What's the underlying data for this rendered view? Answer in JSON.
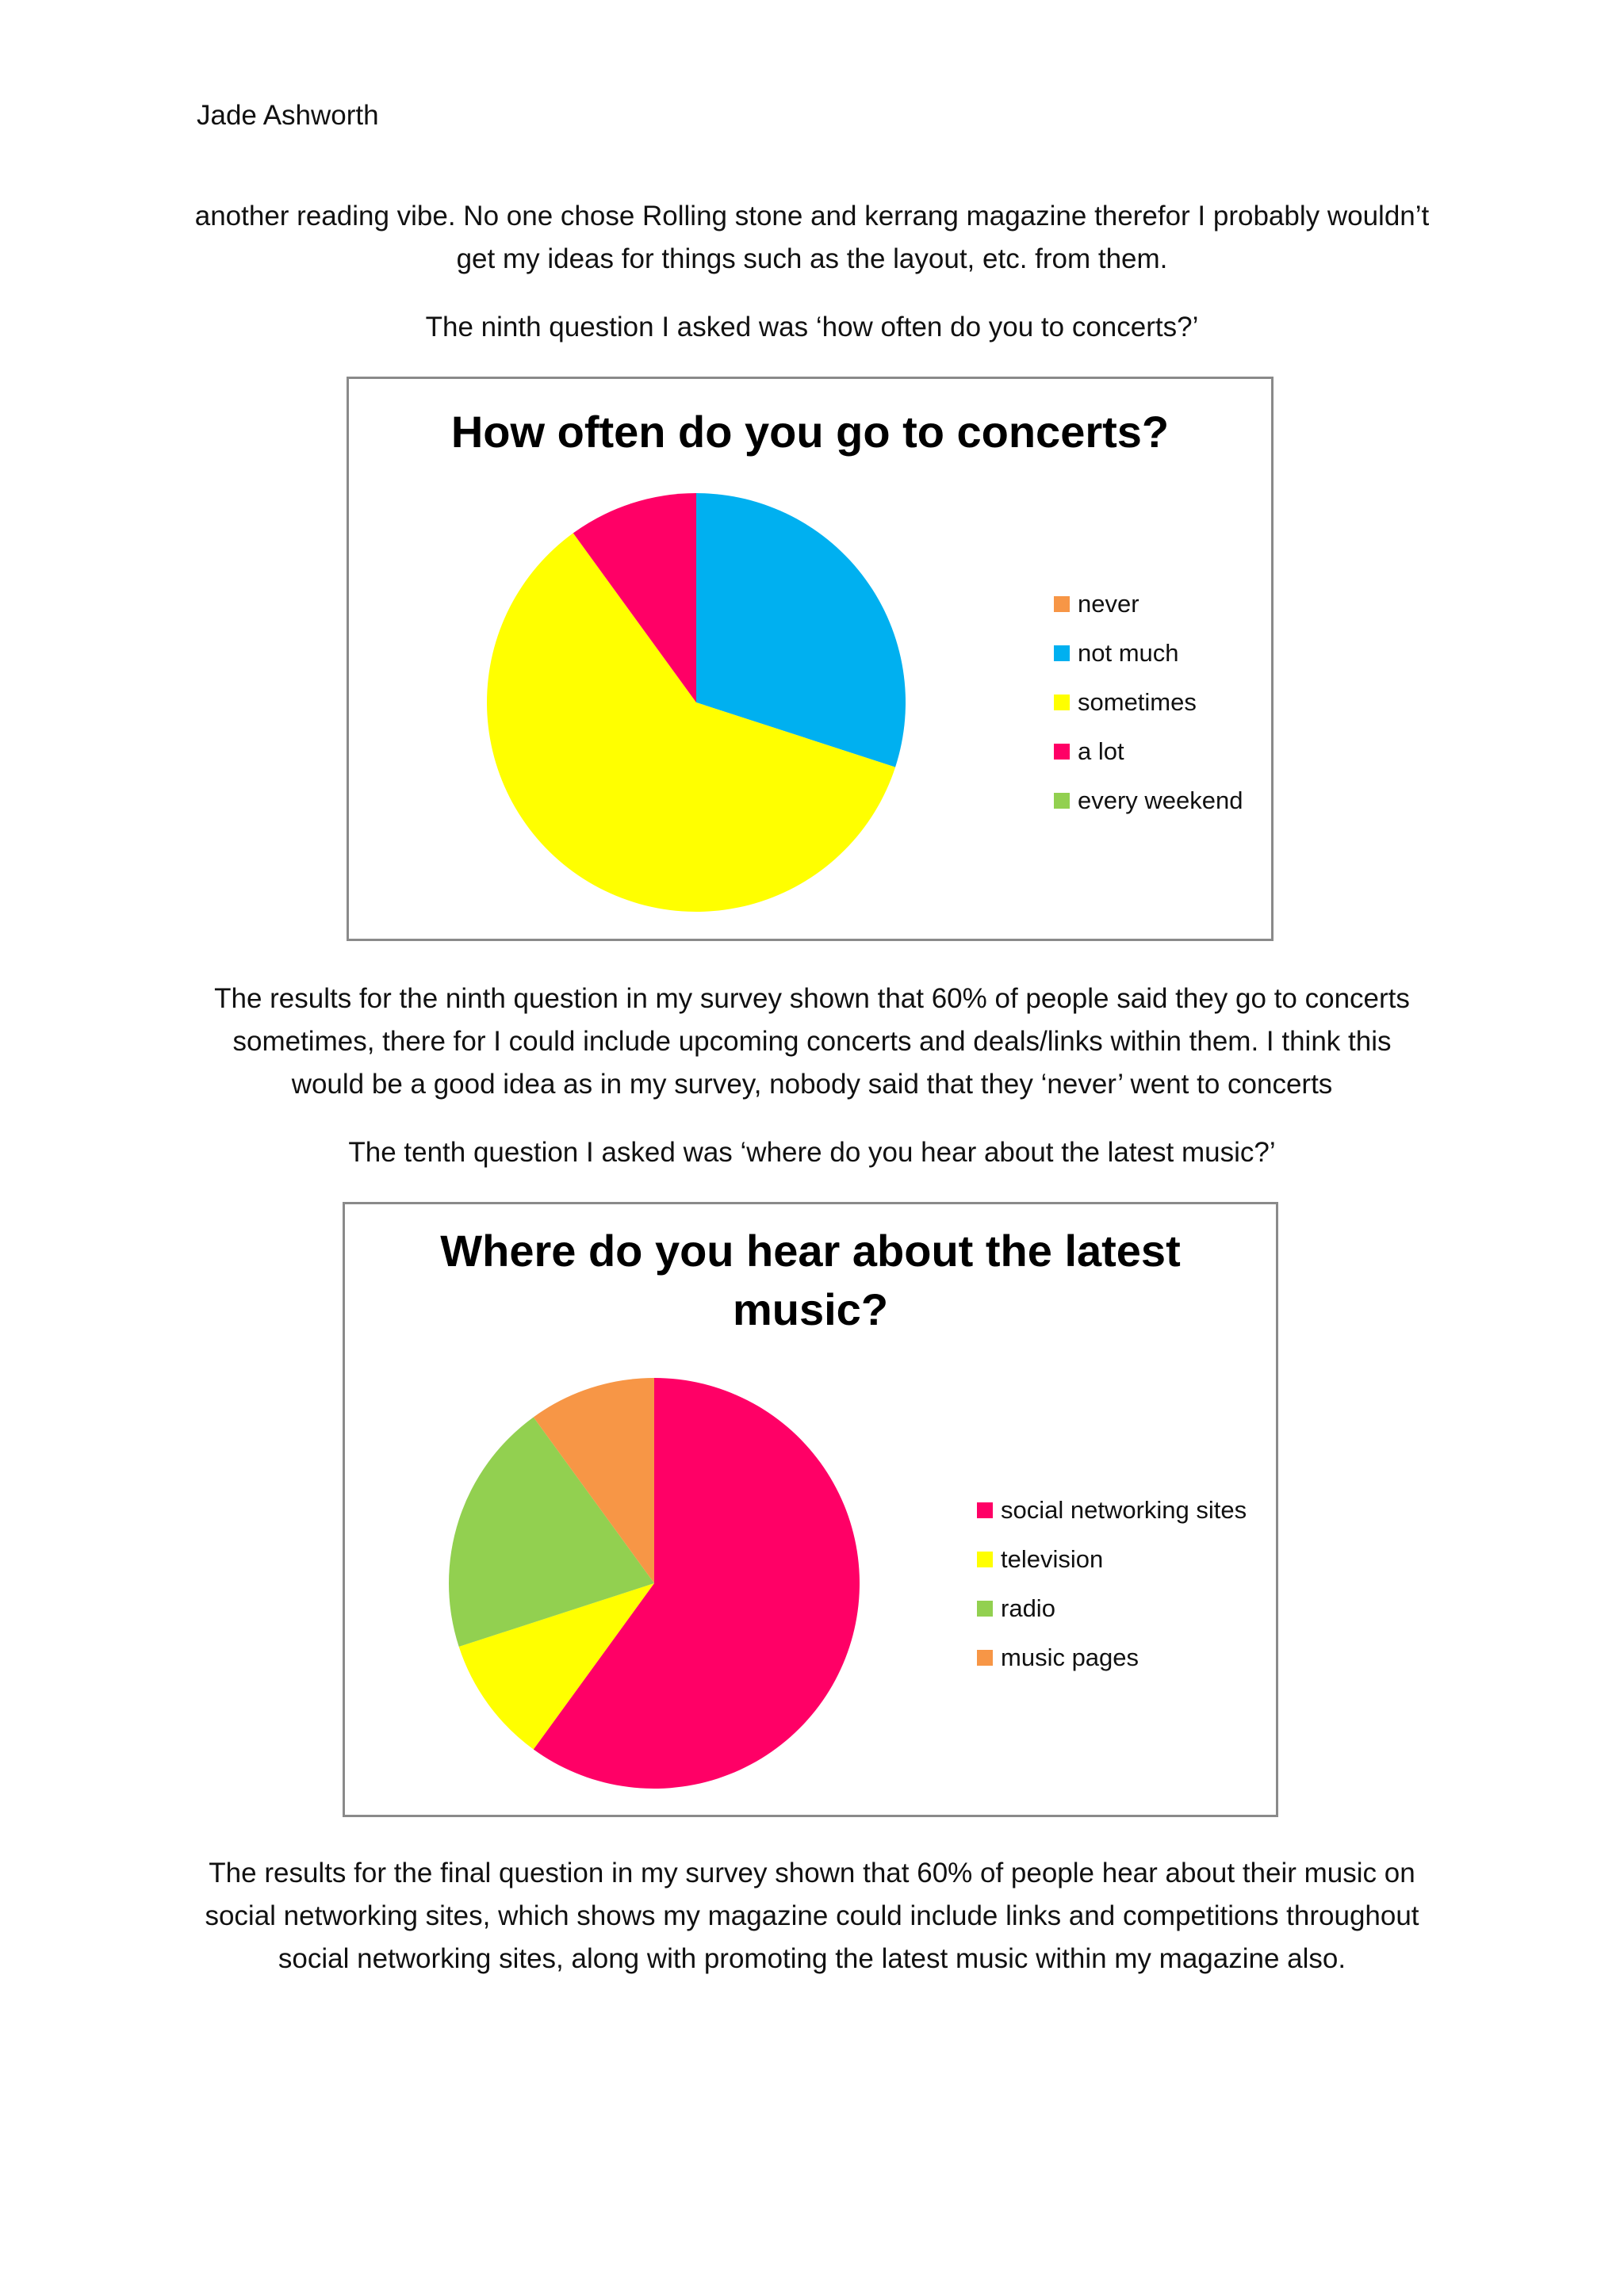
{
  "header": {
    "author": "Jade Ashworth"
  },
  "paragraphs": {
    "intro_1": "another reading vibe. No one chose Rolling stone and kerrang magazine therefor I probably wouldn’t",
    "intro_2": "get my ideas for things such as the layout, etc. from them.",
    "q9_intro": "The ninth question I asked was ‘how often do you to concerts?’",
    "q9_result_1": "The results for the ninth question in my survey shown that 60% of people said they go to concerts",
    "q9_result_2": "sometimes, there for I could include upcoming concerts and deals/links within them. I think this",
    "q9_result_3": "would be a good idea as in my survey, nobody said that they ‘never’ went to concerts",
    "q10_intro": "The tenth question I asked was ‘where do you hear about the latest music?’",
    "q10_result_1": "The results for the final question in my survey shown that 60% of people hear about their music on",
    "q10_result_2": "social networking sites, which shows my magazine could include links and competitions throughout",
    "q10_result_3": "social networking sites, along with promoting the latest music within my magazine also."
  },
  "chart_data": [
    {
      "type": "pie",
      "title": "How often do you go to concerts?",
      "categories": [
        "never",
        "not much",
        "sometimes",
        "a lot",
        "every weekend"
      ],
      "values": [
        0,
        30,
        60,
        10,
        0
      ],
      "colors": [
        "#F79646",
        "#00B0F0",
        "#FFFF00",
        "#FF0066",
        "#92D050"
      ],
      "legend_position": "right"
    },
    {
      "type": "pie",
      "title_lines": [
        "Where do you hear about the latest",
        "music?"
      ],
      "categories": [
        "social networking sites",
        "television",
        "radio",
        "music pages"
      ],
      "values": [
        60,
        10,
        20,
        10
      ],
      "colors": [
        "#FF0066",
        "#FFFF00",
        "#92D050",
        "#F79646"
      ],
      "legend_position": "right"
    }
  ]
}
